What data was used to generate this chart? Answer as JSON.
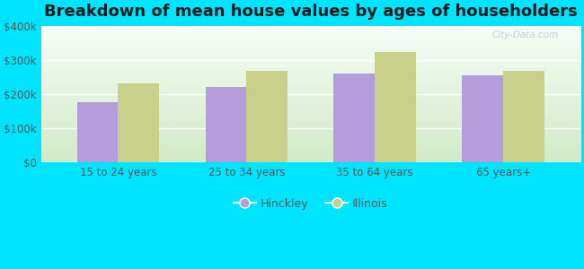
{
  "title": "Breakdown of mean house values by ages of householders",
  "categories": [
    "15 to 24 years",
    "25 to 34 years",
    "35 to 64 years",
    "65 years+"
  ],
  "hinckley_values": [
    178000,
    222000,
    262000,
    257000
  ],
  "illinois_values": [
    232000,
    270000,
    325000,
    270000
  ],
  "hinckley_color": "#b39ddb",
  "illinois_color": "#c8d08a",
  "background_color": "#00e5ff",
  "ylim": [
    0,
    400000
  ],
  "yticks": [
    0,
    100000,
    200000,
    300000,
    400000
  ],
  "ytick_labels": [
    "$0",
    "$100k",
    "$200k",
    "$300k",
    "$400k"
  ],
  "title_fontsize": 13,
  "legend_label_1": "Hinckley",
  "legend_label_2": "Illinois",
  "bar_width": 0.32,
  "watermark": "City-Data.com"
}
